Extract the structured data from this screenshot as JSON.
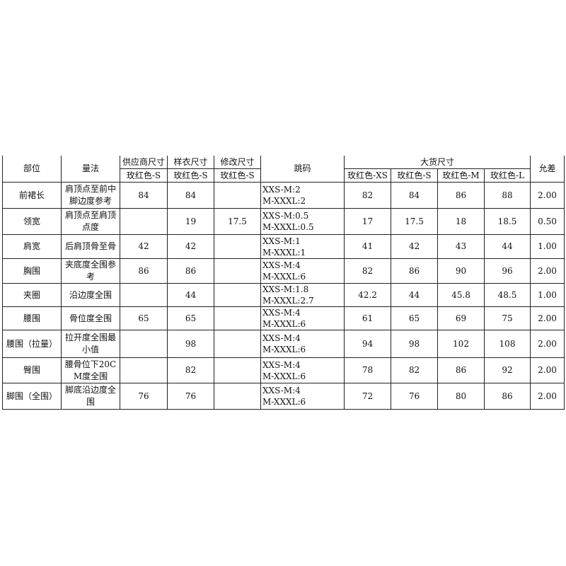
{
  "table": {
    "headers": {
      "part": "部位",
      "method": "量法",
      "supplier": "供应商尺寸",
      "sample": "样衣尺寸",
      "revised": "修改尺寸",
      "grading": "跳码",
      "bulk": "大货尺寸",
      "tolerance": "允差",
      "sub_supplier": "玫红色-S",
      "sub_sample": "玫红色-S",
      "sub_revised": "玫红色-S",
      "sub_xs": "玫红色-XS",
      "sub_s": "玫红色-S",
      "sub_m": "玫红色-M",
      "sub_l": "玫红色-L"
    },
    "rows": [
      {
        "part": "前裙长",
        "method": "肩顶点至前中脚边度参考",
        "supplier": "84",
        "sample": "84",
        "revised": "",
        "grading": "XXS-M:2\nM-XXXL:2",
        "xs": "82",
        "s": "84",
        "m": "86",
        "l": "88",
        "tol": "2.00"
      },
      {
        "part": "领宽",
        "method": "肩顶点至肩顶点度",
        "supplier": "",
        "sample": "19",
        "revised": "17.5",
        "grading": "XXS-M:0.5\nM-XXXL:0.5",
        "xs": "17",
        "s": "17.5",
        "m": "18",
        "l": "18.5",
        "tol": "0.50"
      },
      {
        "part": "肩宽",
        "method": "后肩顶骨至骨",
        "supplier": "42",
        "sample": "42",
        "revised": "",
        "grading": "XXS-M:1\nM-XXXL:1",
        "xs": "41",
        "s": "42",
        "m": "43",
        "l": "44",
        "tol": "1.00"
      },
      {
        "part": "胸围",
        "method": "夹底度全围参考",
        "supplier": "86",
        "sample": "86",
        "revised": "",
        "grading": "XXS-M:4\nM-XXXL:6",
        "xs": "82",
        "s": "86",
        "m": "90",
        "l": "96",
        "tol": "2.00"
      },
      {
        "part": "夹圈",
        "method": "沿边度全围",
        "supplier": "",
        "sample": "44",
        "revised": "",
        "grading": "XXS-M:1.8\nM-XXXL:2.7",
        "xs": "42.2",
        "s": "44",
        "m": "45.8",
        "l": "48.5",
        "tol": "1.00"
      },
      {
        "part": "腰围",
        "method": "骨位度全围",
        "supplier": "65",
        "sample": "65",
        "revised": "",
        "grading": "XXS-M:4\nM-XXXL:6",
        "xs": "61",
        "s": "65",
        "m": "69",
        "l": "75",
        "tol": "2.00"
      },
      {
        "part": "腰围（拉量）",
        "method": "拉开度全围最小值",
        "supplier": "",
        "sample": "98",
        "revised": "",
        "grading": "XXS-M:4\nM-XXXL:6",
        "xs": "94",
        "s": "98",
        "m": "102",
        "l": "108",
        "tol": "2.00"
      },
      {
        "part": "臀围",
        "method": "腰骨位下20CM度全围",
        "supplier": "",
        "sample": "82",
        "revised": "",
        "grading": "XXS-M:4\nM-XXXL:6",
        "xs": "78",
        "s": "82",
        "m": "86",
        "l": "92",
        "tol": "2.00"
      },
      {
        "part": "脚围（全围）",
        "method": "脚底沿边度全围",
        "supplier": "76",
        "sample": "76",
        "revised": "",
        "grading": "XXS-M:4\nM-XXXL:6",
        "xs": "72",
        "s": "76",
        "m": "80",
        "l": "86",
        "tol": "2.00"
      }
    ]
  }
}
